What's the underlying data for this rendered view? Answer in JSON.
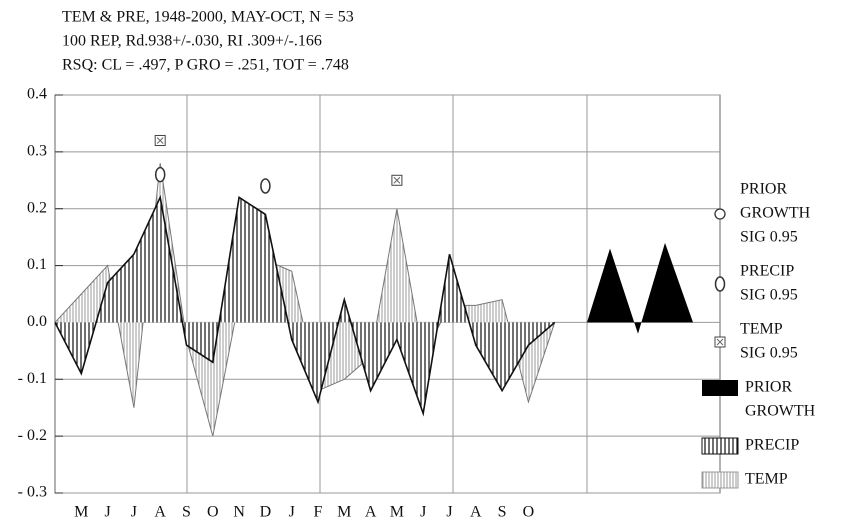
{
  "chart_data": {
    "type": "line",
    "title": [
      "TEM & PRE, 1948-2000, MAY-OCT, N = 53",
      "100 REP, Rd.938+/-.030, RI .309+/-.166",
      "RSQ: CL = .497, P GRO = .251, TOT = .748"
    ],
    "categories": [
      null,
      "M",
      "J",
      "J",
      "A",
      "S",
      "O",
      "N",
      "D",
      "J",
      "F",
      "M",
      "A",
      "M",
      "J",
      "J",
      "A",
      "S",
      "O",
      null
    ],
    "series": [
      {
        "name": "PRECIP",
        "color": "#111111",
        "values": [
          0,
          -0.09,
          0.07,
          0.12,
          0.22,
          -0.04,
          -0.07,
          0.22,
          0.19,
          -0.03,
          -0.14,
          0.04,
          -0.12,
          -0.03,
          -0.16,
          0.12,
          -0.04,
          -0.12,
          -0.04,
          0
        ]
      },
      {
        "name": "TEMP",
        "color": "#777777",
        "values": [
          0,
          0.05,
          0.1,
          -0.15,
          0.28,
          -0.03,
          -0.2,
          0.04,
          0.11,
          0.09,
          -0.12,
          -0.1,
          -0.06,
          0.2,
          -0.06,
          0.03,
          0.03,
          0.04,
          -0.14,
          0
        ]
      }
    ],
    "prior_growth": {
      "name": "PRIOR GROWTH",
      "color": "#000000",
      "values": [
        0.13,
        -0.02,
        0.14
      ]
    },
    "significance": [
      {
        "name": [
          "PRIOR",
          "GROWTH",
          "SIG 0.95"
        ],
        "marker": "circle",
        "values": []
      },
      {
        "name": [
          "PRECIP",
          "SIG 0.95"
        ],
        "marker": "ellipse",
        "values": [
          null,
          null,
          null,
          null,
          0.26,
          null,
          null,
          null,
          0.24,
          null,
          null,
          null,
          null,
          null,
          null,
          null,
          null,
          null,
          null,
          null
        ]
      },
      {
        "name": [
          "TEMP",
          "SIG 0.95"
        ],
        "marker": "boxx",
        "values": [
          null,
          null,
          null,
          null,
          0.32,
          null,
          null,
          null,
          null,
          null,
          null,
          null,
          null,
          0.25,
          null,
          null,
          null,
          null,
          null,
          null
        ]
      }
    ],
    "legend_labels": [
      [
        "PRIOR",
        "GROWTH"
      ],
      [
        "PRECIP"
      ],
      [
        "TEMP"
      ]
    ],
    "ylim": [
      -0.3,
      0.4
    ],
    "yticks": [
      {
        "value": -0.3,
        "label": "- 0.3"
      },
      {
        "value": -0.2,
        "label": "- 0.2"
      },
      {
        "value": -0.1,
        "label": "- 0.1"
      },
      {
        "value": 0,
        "label": "0.0"
      },
      0.1,
      0.2,
      0.3,
      0.4
    ],
    "grid": true
  }
}
